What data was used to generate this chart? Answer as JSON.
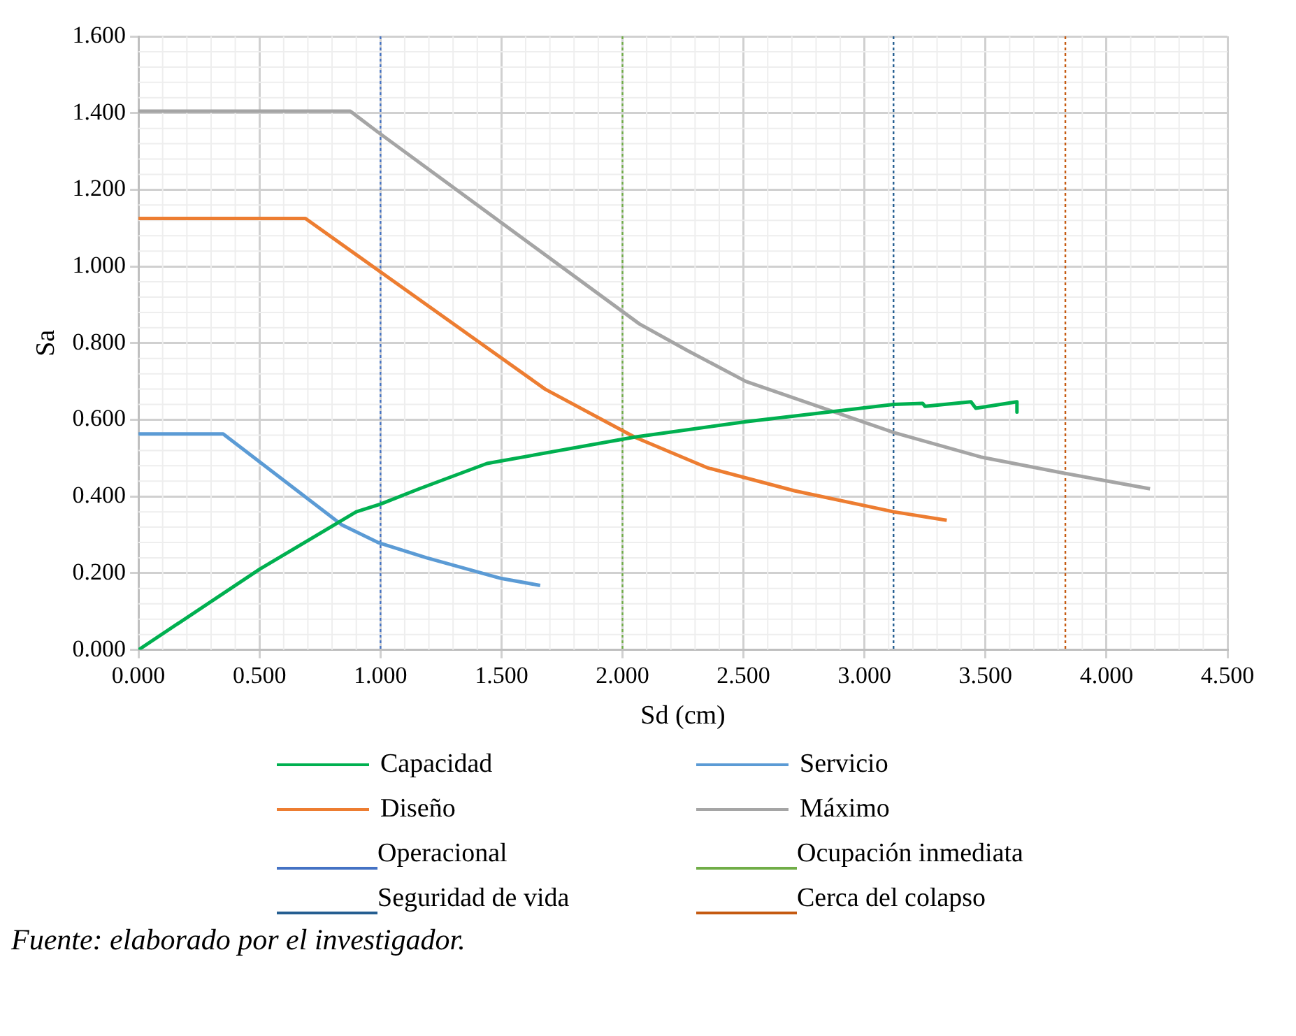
{
  "chart_data": {
    "type": "line",
    "xlabel": "Sd (cm)",
    "ylabel": "Sa",
    "xlim": [
      0,
      4.5
    ],
    "xticks": [
      {
        "value": 0,
        "label": "0.000"
      },
      {
        "value": 0.5,
        "label": "0.500"
      },
      {
        "value": 1,
        "label": "1.000"
      },
      {
        "value": 1.5,
        "label": "1.500"
      },
      {
        "value": 2,
        "label": "2.000"
      },
      {
        "value": 2.5,
        "label": "2.500"
      },
      {
        "value": 3,
        "label": "3.000"
      },
      {
        "value": 3.5,
        "label": "3.500"
      },
      {
        "value": 4,
        "label": "4.000"
      },
      {
        "value": 4.5,
        "label": "4.500"
      }
    ],
    "ylim": [
      0,
      1.6
    ],
    "yticks": [
      {
        "value": 0,
        "label": "0.000"
      },
      {
        "value": 0.2,
        "label": "0.200"
      },
      {
        "value": 0.4,
        "label": "0.400"
      },
      {
        "value": 0.6,
        "label": "0.600"
      },
      {
        "value": 0.8,
        "label": "0.800"
      },
      {
        "value": 1,
        "label": "1.000"
      },
      {
        "value": 1.2,
        "label": "1.200"
      },
      {
        "value": 1.4,
        "label": "1.400"
      },
      {
        "value": 1.6,
        "label": "1.600"
      }
    ],
    "grid": true,
    "legend": "bottom",
    "marker": "none",
    "series": [
      {
        "name": "Capacidad",
        "color": "#00b050",
        "x": [
          0,
          0.5,
          0.9,
          1.0,
          1.16,
          1.44,
          2.05,
          2.51,
          3.12,
          3.24,
          3.25,
          3.44,
          3.46,
          3.63,
          3.63
        ],
        "values": [
          0,
          0.21,
          0.36,
          0.38,
          0.42,
          0.486,
          0.555,
          0.595,
          0.64,
          0.643,
          0.635,
          0.647,
          0.63,
          0.647,
          0.62
        ]
      },
      {
        "name": "Servicio",
        "color": "#5b9bd5",
        "x": [
          0,
          0.35,
          0.84,
          0.99,
          1.19,
          1.5,
          1.66
        ],
        "values": [
          0.563,
          0.563,
          0.326,
          0.28,
          0.24,
          0.186,
          0.168
        ]
      },
      {
        "name": "Diseño",
        "color": "#ed7d31",
        "x": [
          0,
          0.69,
          0.99,
          1.68,
          2.05,
          2.35,
          2.71,
          3.12,
          3.34
        ],
        "values": [
          1.125,
          1.125,
          0.99,
          0.68,
          0.555,
          0.475,
          0.415,
          0.36,
          0.338
        ]
      },
      {
        "name": "Máximo",
        "color": "#a5a5a5",
        "x": [
          0,
          0.875,
          0.99,
          2.07,
          2.27,
          2.51,
          3.12,
          3.48,
          3.83,
          4.18
        ],
        "values": [
          1.405,
          1.405,
          1.35,
          0.85,
          0.78,
          0.7,
          0.567,
          0.503,
          0.46,
          0.42
        ]
      }
    ],
    "ref_lines": [
      {
        "axis": "x",
        "value": 1.0,
        "label": "Operacional",
        "color": "#4472c4",
        "line_style": "dotted"
      },
      {
        "axis": "x",
        "value": 2.0,
        "label": "Ocupación inmediata",
        "color": "#70ad47",
        "line_style": "dotted"
      },
      {
        "axis": "x",
        "value": 3.12,
        "label": "Seguridad de vida",
        "color": "#255e91",
        "line_style": "dotted"
      },
      {
        "axis": "x",
        "value": 3.83,
        "label": "Cerca del colapso",
        "color": "#c55a11",
        "line_style": "dotted"
      }
    ],
    "annotations": [
      "Fuente: elaborado por el investigador."
    ]
  }
}
